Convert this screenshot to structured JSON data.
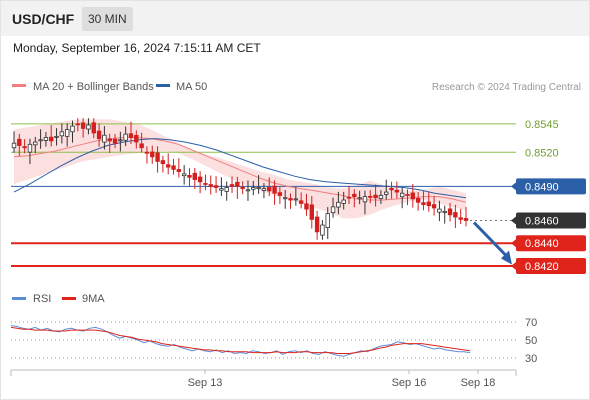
{
  "header": {
    "symbol": "USD/CHF",
    "timeframe": "30 MIN"
  },
  "timestamp": "Monday, September 16, 2024 7:15:11 AM CET",
  "legend_main": [
    {
      "label": "MA 20 + Bollinger Bands",
      "color": "#f07f7f"
    },
    {
      "label": "MA 50",
      "color": "#2b5fa8"
    }
  ],
  "legend_rsi": [
    {
      "label": "RSI",
      "color": "#5b8bd8"
    },
    {
      "label": "9MA",
      "color": "#e0241b"
    }
  ],
  "credit": "Research © 2024 Trading Central",
  "chart_data": [
    {
      "type": "candlestick",
      "ylim": [
        0.8405,
        0.8566
      ],
      "levels": [
        {
          "value": 0.8545,
          "label": "0.8545",
          "color": "#8cc04a",
          "style": "resistance"
        },
        {
          "value": 0.852,
          "label": "0.8520",
          "color": "#8cc04a",
          "style": "resistance"
        },
        {
          "value": 0.849,
          "label": "0.8490",
          "color": "#2b5fa8",
          "style": "pivot"
        },
        {
          "value": 0.846,
          "label": "0.8460",
          "color": "#333333",
          "style": "last-price"
        },
        {
          "value": 0.844,
          "label": "0.8440",
          "color": "#e0241b",
          "style": "support"
        },
        {
          "value": 0.842,
          "label": "0.8420",
          "color": "#e0241b",
          "style": "support"
        }
      ],
      "close_path": [
        0.8528,
        0.8526,
        0.8524,
        0.8527,
        0.8529,
        0.8531,
        0.8533,
        0.853,
        0.8534,
        0.8538,
        0.854,
        0.8543,
        0.8545,
        0.8541,
        0.8544,
        0.8537,
        0.8532,
        0.8535,
        0.853,
        0.8528,
        0.8531,
        0.8536,
        0.8533,
        0.8529,
        0.8524,
        0.852,
        0.8516,
        0.8512,
        0.851,
        0.8507,
        0.8505,
        0.8503,
        0.8501,
        0.8498,
        0.8496,
        0.8494,
        0.8492,
        0.849,
        0.8489,
        0.8488,
        0.8489,
        0.849,
        0.849,
        0.8488,
        0.8487,
        0.8489,
        0.8489,
        0.8488,
        0.8486,
        0.8484,
        0.8482,
        0.848,
        0.8478,
        0.8479,
        0.8475,
        0.847,
        0.8461,
        0.845,
        0.8456,
        0.8466,
        0.8472,
        0.8476,
        0.8478,
        0.848,
        0.8481,
        0.848,
        0.8481,
        0.8481,
        0.848,
        0.8482,
        0.8485,
        0.8487,
        0.8485,
        0.8484,
        0.8482,
        0.8479,
        0.8476,
        0.8474,
        0.8473,
        0.8471,
        0.847,
        0.8468,
        0.8465,
        0.8463,
        0.8461,
        0.846
      ],
      "candle_range_min": 0.8443,
      "candle_range_max": 0.855,
      "ma20": [
        0.8516,
        0.8517,
        0.8519,
        0.8521,
        0.8524,
        0.8527,
        0.853,
        0.8532,
        0.8533,
        0.8533,
        0.8532,
        0.853,
        0.8527,
        0.8522,
        0.8517,
        0.8512,
        0.8507,
        0.8502,
        0.8497,
        0.8493,
        0.849,
        0.8488,
        0.8486,
        0.8484,
        0.8482,
        0.8479,
        0.8478,
        0.8478,
        0.8479,
        0.848,
        0.8481,
        0.8481,
        0.8479,
        0.8476
      ],
      "ma20_upper": [
        0.854,
        0.8542,
        0.8544,
        0.8546,
        0.8548,
        0.8549,
        0.8549,
        0.8549,
        0.8547,
        0.8545,
        0.854,
        0.8534,
        0.8528,
        0.8522,
        0.8518,
        0.8515,
        0.8511,
        0.8507,
        0.8503,
        0.85,
        0.8496,
        0.8494,
        0.8492,
        0.8489,
        0.8488,
        0.8491,
        0.8495,
        0.8491,
        0.8488,
        0.8486,
        0.8487,
        0.849,
        0.8487,
        0.8484
      ],
      "ma20_lower": [
        0.8492,
        0.8496,
        0.85,
        0.8504,
        0.8508,
        0.8512,
        0.8514,
        0.8516,
        0.8518,
        0.8519,
        0.852,
        0.8521,
        0.8519,
        0.8514,
        0.8508,
        0.8502,
        0.8496,
        0.8491,
        0.8486,
        0.8482,
        0.8479,
        0.8475,
        0.8471,
        0.8467,
        0.8462,
        0.8462,
        0.8465,
        0.847,
        0.8474,
        0.8477,
        0.8478,
        0.8475,
        0.8472,
        0.8469
      ],
      "ma50": [
        0.8485,
        0.8492,
        0.85,
        0.8508,
        0.8515,
        0.8521,
        0.8526,
        0.8529,
        0.8531,
        0.8532,
        0.8531,
        0.8529,
        0.8526,
        0.8522,
        0.8517,
        0.8512,
        0.8507,
        0.8503,
        0.8499,
        0.8496,
        0.8494,
        0.8493,
        0.8492,
        0.8491,
        0.849,
        0.8489,
        0.8487,
        0.8484,
        0.8482,
        0.848
      ],
      "forecast_end": 0.8423
    },
    {
      "type": "line",
      "ylim": [
        20,
        80
      ],
      "yticks": [
        70,
        50,
        30
      ],
      "series": [
        {
          "name": "RSI",
          "values": [
            66,
            65,
            63,
            62,
            64,
            61,
            63,
            60,
            59,
            62,
            63,
            61,
            60,
            63,
            64,
            62,
            59,
            55,
            52,
            54,
            52,
            50,
            47,
            49,
            46,
            44,
            43,
            45,
            42,
            40,
            38,
            40,
            38,
            37,
            39,
            36,
            38,
            35,
            36,
            35,
            38,
            37,
            35,
            36,
            38,
            34,
            37,
            38,
            36,
            38,
            35,
            34,
            37,
            35,
            33,
            32,
            34,
            36,
            38,
            37,
            40,
            43,
            44,
            45,
            48,
            47,
            45,
            46,
            44,
            42,
            40,
            41,
            39,
            38,
            37,
            37,
            36
          ]
        },
        {
          "name": "9MA",
          "values": [
            64,
            63,
            62,
            62,
            61,
            61,
            61,
            60,
            60,
            60,
            61,
            61,
            61,
            61,
            61,
            60,
            59,
            57,
            55,
            54,
            53,
            51,
            50,
            49,
            48,
            46,
            45,
            44,
            43,
            42,
            41,
            40,
            39,
            39,
            38,
            38,
            37,
            37,
            37,
            37,
            36,
            36,
            36,
            36,
            37,
            36,
            36,
            36,
            37,
            37,
            36,
            36,
            36,
            36,
            35,
            35,
            35,
            36,
            37,
            38,
            39,
            41,
            42,
            44,
            45,
            46,
            46,
            46,
            46,
            45,
            44,
            43,
            42,
            41,
            40,
            39,
            38
          ]
        }
      ]
    }
  ],
  "x_ticks": [
    "Sep 13",
    "Sep 16",
    "Sep 18"
  ]
}
